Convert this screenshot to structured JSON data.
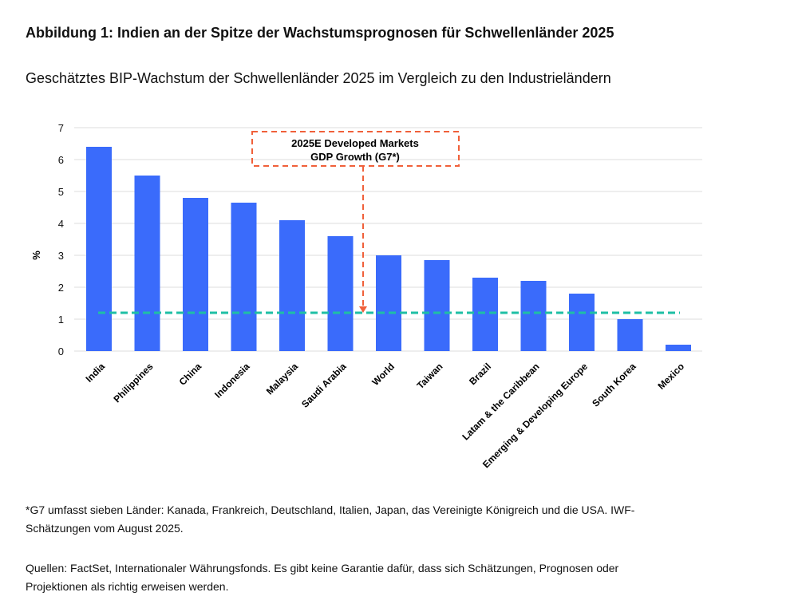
{
  "title": "Abbildung 1: Indien an der Spitze der Wachstumsprognosen für Schwellenländer 2025",
  "subtitle": "Geschätztes BIP-Wachstum der Schwellenländer 2025 im Vergleich zu den Industrieländern",
  "footnote": "*G7 umfasst sieben Länder: Kanada, Frankreich, Deutschland, Italien, Japan, das Vereinigte Königreich und die USA. IWF-Schätzungen vom August 2025.",
  "sources": "Quellen: FactSet, Internationaler Währungsfonds. Es gibt keine Garantie dafür, dass sich Schätzungen, Prognosen oder Projektionen als richtig erweisen werden.",
  "chart_data": {
    "type": "bar",
    "ylabel": "%",
    "ylim": [
      0,
      7
    ],
    "yticks": [
      "0",
      "1",
      "2",
      "3",
      "4",
      "5",
      "6",
      "7"
    ],
    "grid": true,
    "categories": [
      "India",
      "Philippines",
      "China",
      "Indonesia",
      "Malaysia",
      "Saudi Arabia",
      "World",
      "Taiwan",
      "Brazil",
      "Latam & the Caribbean",
      "Emerging & Developing Europe",
      "South Korea",
      "Mexico"
    ],
    "values": [
      6.4,
      5.5,
      4.8,
      4.65,
      4.1,
      3.6,
      3.0,
      2.85,
      2.3,
      2.2,
      1.8,
      1.0,
      0.2
    ],
    "reference_line": {
      "value": 1.2,
      "style": "dashed"
    },
    "annotation": {
      "line1": "2025E Developed Markets",
      "line2": "GDP Growth (G7*)"
    },
    "colors": {
      "bar": "#3a6bfb",
      "reference_line": "#1fbfa5",
      "annotation": "#f0603a",
      "grid": "#dddddd"
    }
  }
}
